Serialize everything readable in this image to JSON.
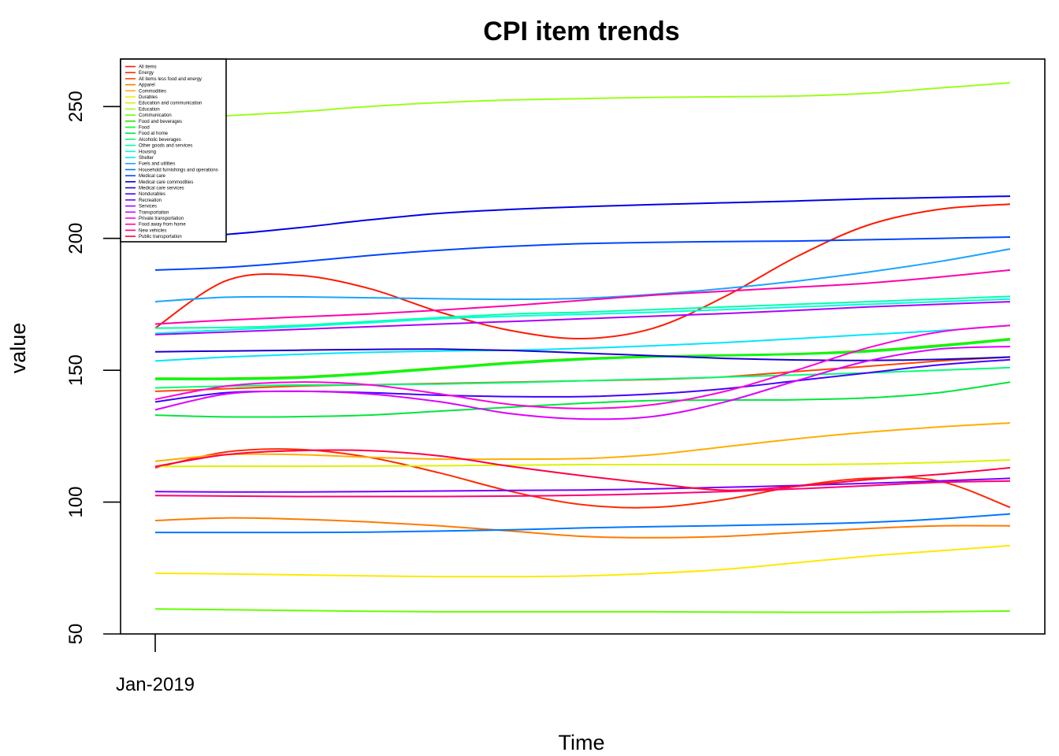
{
  "chart_data": {
    "type": "line",
    "title": "CPI item trends",
    "xlabel": "Time",
    "ylabel": "value",
    "x_tick_labels": [
      "Jan-2019"
    ],
    "y_ticks": [
      50,
      100,
      150,
      200,
      250
    ],
    "ylim": [
      50,
      268
    ],
    "x": [
      0,
      1,
      2,
      3,
      4,
      5,
      6,
      7,
      8,
      9,
      10,
      11,
      12
    ],
    "legend_position": "top-left",
    "series": [
      {
        "name": "All items",
        "color": "#FF1A00",
        "values": [
          166,
          184,
          186,
          181,
          172,
          165,
          162,
          166,
          178,
          193,
          205,
          211,
          213
        ]
      },
      {
        "name": "Energy",
        "color": "#FF2A00",
        "values": [
          113,
          119,
          120,
          117,
          111,
          104,
          99,
          98,
          101,
          106,
          109,
          108,
          98
        ]
      },
      {
        "name": "All items less food and energy",
        "color": "#FF4400",
        "values": [
          142,
          143,
          144,
          144.5,
          145,
          145.5,
          146,
          146.5,
          147.5,
          149.5,
          151.5,
          153.5,
          155
        ]
      },
      {
        "name": "Apparel",
        "color": "#FF7A00",
        "values": [
          93,
          94,
          93.5,
          92.5,
          91,
          89,
          87,
          86.5,
          87,
          88.5,
          90,
          91,
          91
        ]
      },
      {
        "name": "Commodities",
        "color": "#FFAE00",
        "values": [
          115.5,
          118,
          118,
          117,
          116.3,
          116.3,
          116.5,
          118,
          121,
          124,
          126.5,
          128.5,
          130
        ]
      },
      {
        "name": "Durables",
        "color": "#FFE800",
        "values": [
          73,
          72.8,
          72.4,
          72,
          71.7,
          71.7,
          72,
          73,
          74.5,
          77,
          79.5,
          81.5,
          83.5
        ]
      },
      {
        "name": "Education and communication",
        "color": "#DDF200",
        "values": [
          113.5,
          113.6,
          113.6,
          113.7,
          113.8,
          114,
          114.2,
          114.2,
          114.2,
          114.2,
          114.4,
          115,
          116
        ]
      },
      {
        "name": "Education",
        "color": "#99FF1A",
        "values": [
          245,
          246.5,
          248,
          250,
          251.5,
          252.5,
          253,
          253.5,
          253.7,
          254,
          255,
          257,
          259
        ]
      },
      {
        "name": "Communication",
        "color": "#66FF00",
        "values": [
          59.5,
          59.2,
          58.9,
          58.6,
          58.4,
          58.4,
          58.4,
          58.4,
          58.3,
          58.2,
          58.2,
          58.4,
          58.7
        ]
      },
      {
        "name": "Food and beverages",
        "color": "#2EE600",
        "values": [
          147,
          147,
          147.5,
          149,
          151,
          153,
          154.5,
          155.3,
          155.8,
          156.3,
          157.5,
          159.5,
          162
        ]
      },
      {
        "name": "Food",
        "color": "#00FF19",
        "values": [
          146.5,
          146.5,
          147,
          148.5,
          150.5,
          152.5,
          154,
          155,
          155.5,
          156,
          157,
          159,
          161.5
        ]
      },
      {
        "name": "Food at home",
        "color": "#00E63C",
        "values": [
          133,
          132.3,
          132.4,
          133,
          134.5,
          136,
          137.5,
          138.5,
          138.7,
          138.8,
          139.5,
          141.5,
          145.5
        ]
      },
      {
        "name": "Alcoholic beverages",
        "color": "#00FF77",
        "values": [
          143.3,
          144,
          144.4,
          144.5,
          144.8,
          145.3,
          146,
          146.7,
          147.4,
          148.2,
          149,
          150,
          151
        ]
      },
      {
        "name": "Other goods and services",
        "color": "#00FFAA",
        "values": [
          166,
          166.2,
          167,
          168.5,
          170,
          171.3,
          172,
          173,
          174,
          175,
          176,
          177,
          178
        ]
      },
      {
        "name": "Housing",
        "color": "#00FFDD",
        "values": [
          164,
          165.3,
          166.5,
          168,
          169.5,
          170.5,
          171.2,
          172,
          173,
          174,
          175,
          176,
          177
        ]
      },
      {
        "name": "Shelter",
        "color": "#00E6FF",
        "values": [
          153.5,
          155,
          156,
          156.8,
          157.3,
          157.6,
          158.3,
          159.3,
          160.5,
          162,
          163.5,
          165,
          167
        ]
      },
      {
        "name": "Fuels and utilities",
        "color": "#1AA3FF",
        "values": [
          176,
          177.7,
          177.8,
          177.5,
          177.1,
          176.9,
          177.3,
          178.8,
          181,
          183.8,
          187.2,
          191.2,
          196
        ]
      },
      {
        "name": "Household furnishings and operations",
        "color": "#0077FF",
        "values": [
          88.5,
          88.5,
          88.5,
          88.6,
          89,
          89.5,
          90.2,
          90.7,
          91.1,
          91.6,
          92.3,
          93.6,
          95.5
        ]
      },
      {
        "name": "Medical care",
        "color": "#0044FF",
        "values": [
          188,
          189,
          191,
          193.5,
          195.5,
          197,
          198,
          198.5,
          198.8,
          199,
          199.5,
          200,
          200.5
        ]
      },
      {
        "name": "Medical care commodities",
        "color": "#0000E6",
        "values": [
          200,
          201.5,
          204,
          207,
          209.5,
          211,
          212,
          212.8,
          213.5,
          214.2,
          215,
          215.5,
          216
        ]
      },
      {
        "name": "Medical care services",
        "color": "#1A00CC",
        "values": [
          157,
          157.3,
          157.6,
          157.9,
          158,
          157.5,
          156.5,
          155.5,
          154.5,
          153.9,
          153.7,
          154.1,
          155
        ]
      },
      {
        "name": "Nondurables",
        "color": "#4400FF",
        "values": [
          138,
          141.5,
          142,
          141.5,
          140.5,
          140,
          140,
          141,
          143,
          146,
          149,
          152,
          154
        ]
      },
      {
        "name": "Recreation",
        "color": "#7700FF",
        "values": [
          104,
          103.8,
          103.8,
          104,
          104.2,
          104.4,
          104.6,
          105,
          105.6,
          106.3,
          107.1,
          108,
          109
        ]
      },
      {
        "name": "Services",
        "color": "#AA00FF",
        "values": [
          163.5,
          164.5,
          165.5,
          166.5,
          167.5,
          168.5,
          169.5,
          170.5,
          171.5,
          172.7,
          174,
          175,
          176
        ]
      },
      {
        "name": "Transportation",
        "color": "#DD00FF",
        "values": [
          135,
          141,
          142,
          141,
          138,
          133.5,
          131.5,
          132.5,
          138,
          146,
          153.5,
          158,
          159
        ]
      },
      {
        "name": "Private transportation",
        "color": "#FF00DD",
        "values": [
          139,
          144,
          145.5,
          144.5,
          141,
          137,
          135.5,
          137,
          142,
          150,
          158.5,
          164.5,
          167
        ]
      },
      {
        "name": "Food away from home",
        "color": "#FF00AA",
        "values": [
          167.5,
          169,
          170.2,
          171.3,
          172.8,
          174.5,
          176.5,
          178.5,
          180,
          181.5,
          183,
          185.3,
          188
        ]
      },
      {
        "name": "New vehicles",
        "color": "#FF0077",
        "values": [
          102.5,
          102.3,
          102.1,
          102.1,
          102.1,
          102.3,
          102.6,
          103.2,
          104,
          105,
          106.2,
          107.5,
          108
        ]
      },
      {
        "name": "Public transportation",
        "color": "#FF0044",
        "values": [
          113.5,
          118,
          119.5,
          119.5,
          117.5,
          113.5,
          110,
          107,
          104.5,
          106,
          108.5,
          110.5,
          113
        ]
      }
    ]
  }
}
